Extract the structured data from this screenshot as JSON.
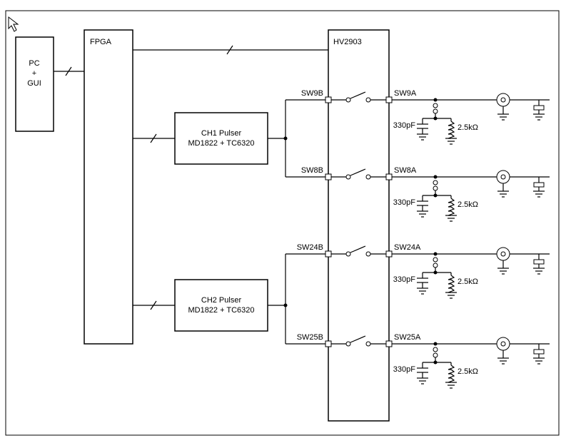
{
  "blocks": {
    "pc": {
      "label": "PC\n+\nGUI"
    },
    "fpga": {
      "label": "FPGA"
    },
    "ch1": {
      "label_l1": "CH1 Pulser",
      "label_l2": "MD1822 + TC6320"
    },
    "ch2": {
      "label_l1": "CH2 Pulser",
      "label_l2": "MD1822 + TC6320"
    },
    "hv": {
      "label": "HV2903"
    }
  },
  "cap_value": "330pF",
  "res_value": "2.5kΩ",
  "channels": [
    {
      "swb": "SW9B",
      "swa": "SW9A"
    },
    {
      "swb": "SW8B",
      "swa": "SW8A"
    },
    {
      "swb": "SW24B",
      "swa": "SW24A"
    },
    {
      "swb": "SW25B",
      "swa": "SW25A"
    }
  ]
}
